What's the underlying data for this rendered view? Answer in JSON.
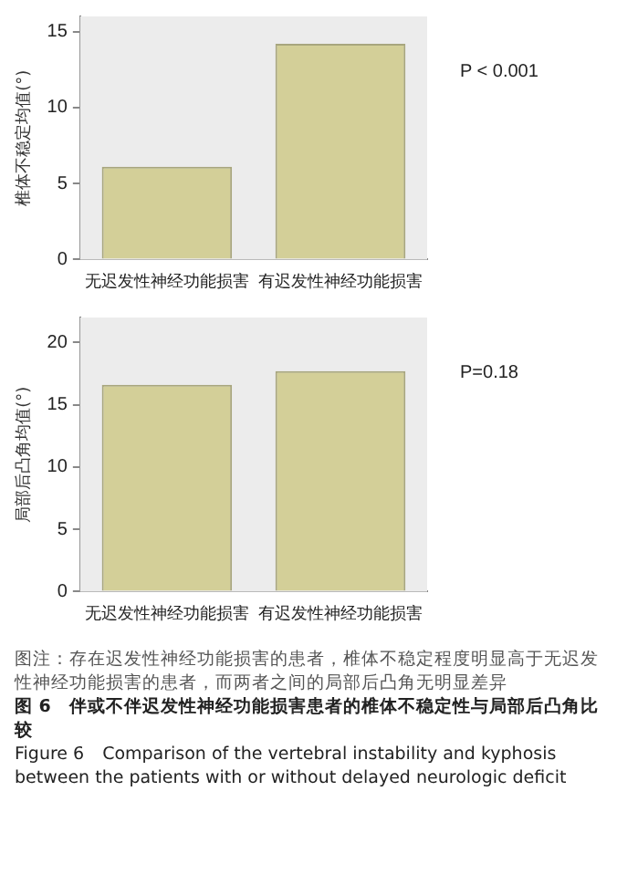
{
  "chart_data": [
    {
      "type": "bar",
      "ylabel": "椎体不稳定均值(°)",
      "categories": [
        "无迟发性神经功能损害",
        "有迟发性神经功能损害"
      ],
      "values": [
        6.1,
        14.2
      ],
      "color": "#d3cf98",
      "ylim": [
        0,
        16
      ],
      "yticks": [
        0,
        5,
        10,
        15
      ],
      "annotations": [
        "P < 0.001"
      ]
    },
    {
      "type": "bar",
      "ylabel": "局部后凸角均值(°)",
      "categories": [
        "无迟发性神经功能损害",
        "有迟发性神经功能损害"
      ],
      "values": [
        16.6,
        17.7
      ],
      "color": "#d3cf98",
      "ylim": [
        0,
        22
      ],
      "yticks": [
        0,
        5,
        10,
        15,
        20
      ],
      "annotations": [
        "P=0.18",
        "图注：存在迟发性神经功能损害的患者，椎体不稳定程度明显高于无迟发性神经功能损害的患者，而两者之间的局部后凸角无明显差异",
        "图 6　伴或不伴迟发性神经功能损害患者的椎体不稳定性与局部后凸角比较",
        "Figure 6　Comparison of the vertebral instability and kyphosis between the patients with or without delayed neurologic deficit"
      ]
    }
  ]
}
